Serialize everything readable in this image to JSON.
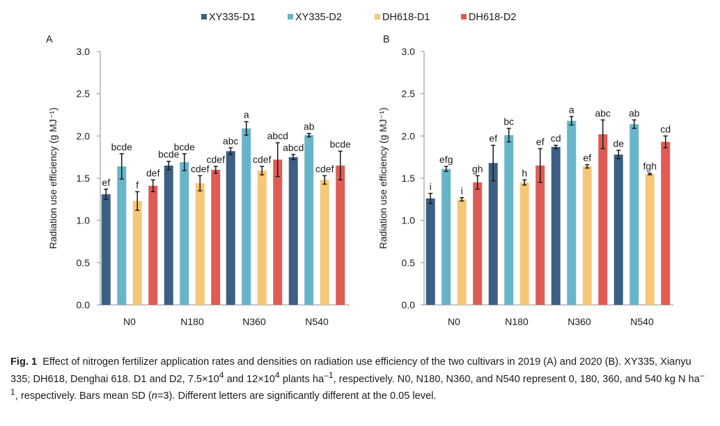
{
  "legend": [
    {
      "label": "XY335-D1",
      "color": "#3c5f85"
    },
    {
      "label": "XY335-D2",
      "color": "#67b5c9"
    },
    {
      "label": "DH618-D1",
      "color": "#f6c777"
    },
    {
      "label": "DH618-D2",
      "color": "#df5c55"
    }
  ],
  "chart_data": [
    {
      "type": "bar",
      "panel": "A",
      "title": "",
      "xlabel": "",
      "ylabel": "Radiation use efficiency (g MJ⁻¹)",
      "ylim": [
        0,
        3.0
      ],
      "yticks": [
        "0.0",
        "0.5",
        "1.0",
        "1.5",
        "2.0",
        "2.5",
        "3.0"
      ],
      "categories": [
        "N0",
        "N180",
        "N360",
        "N540"
      ],
      "series": [
        {
          "name": "XY335-D1",
          "values": [
            1.31,
            1.65,
            1.82,
            1.75
          ],
          "errors": [
            0.06,
            0.05,
            0.04,
            0.03
          ],
          "labels": [
            "ef",
            "bcde",
            "abc",
            "abcd"
          ]
        },
        {
          "name": "XY335-D2",
          "values": [
            1.64,
            1.69,
            2.09,
            2.01
          ],
          "errors": [
            0.15,
            0.1,
            0.08,
            0.02
          ],
          "labels": [
            "bcde",
            "bcde",
            "a",
            "ab"
          ]
        },
        {
          "name": "DH618-D1",
          "values": [
            1.23,
            1.44,
            1.59,
            1.48
          ],
          "errors": [
            0.11,
            0.09,
            0.05,
            0.05
          ],
          "labels": [
            "f",
            "cdef",
            "cdef",
            "cdef"
          ]
        },
        {
          "name": "DH618-D2",
          "values": [
            1.41,
            1.6,
            1.72,
            1.65
          ],
          "errors": [
            0.07,
            0.04,
            0.2,
            0.17
          ],
          "labels": [
            "def",
            "cdef",
            "abcd",
            "bcde"
          ]
        }
      ]
    },
    {
      "type": "bar",
      "panel": "B",
      "title": "",
      "xlabel": "",
      "ylabel": "Radiation use efficiency (g MJ⁻¹)",
      "ylim": [
        0,
        3.0
      ],
      "yticks": [
        "0.0",
        "0.5",
        "1.0",
        "1.5",
        "2.0",
        "2.5",
        "3.0"
      ],
      "categories": [
        "N0",
        "N180",
        "N360",
        "N540"
      ],
      "series": [
        {
          "name": "XY335-D1",
          "values": [
            1.26,
            1.68,
            1.87,
            1.78
          ],
          "errors": [
            0.06,
            0.21,
            0.02,
            0.05
          ],
          "labels": [
            "i",
            "ef",
            "cd",
            "de"
          ]
        },
        {
          "name": "XY335-D2",
          "values": [
            1.61,
            2.01,
            2.18,
            2.14
          ],
          "errors": [
            0.03,
            0.08,
            0.05,
            0.05
          ],
          "labels": [
            "efg",
            "bc",
            "a",
            "ab"
          ]
        },
        {
          "name": "DH618-D1",
          "values": [
            1.25,
            1.45,
            1.64,
            1.55
          ],
          "errors": [
            0.02,
            0.03,
            0.02,
            0.01
          ],
          "labels": [
            "i",
            "h",
            "ef",
            "fgh"
          ]
        },
        {
          "name": "DH618-D2",
          "values": [
            1.45,
            1.65,
            2.02,
            1.93
          ],
          "errors": [
            0.08,
            0.2,
            0.17,
            0.07
          ],
          "labels": [
            "gh",
            "ef",
            "abc",
            "cd"
          ]
        }
      ]
    }
  ],
  "caption": {
    "fig_label": "Fig. 1",
    "text_1": "Effect of nitrogen fertilizer application rates and densities on radiation use efficiency of the two cultivars in 2019 (A) and 2020 (B).  XY335, Xianyu 335; DH618, Denghai 618.  D1 and D2, 7.5×10",
    "sup_1": "4",
    "text_2": " and 12×10",
    "sup_2": "4",
    "text_3": " plants ha",
    "sup_3": "–1",
    "text_4": ", respectively.  N0, N180, N360, and N540 represent 0, 180, 360, and 540 kg N ha",
    "sup_4": "–1",
    "text_5": ", respectively.  Bars mean SD (",
    "n_symbol": "n",
    "text_6": "=3).  Different letters are significantly different at the 0.05 level."
  }
}
